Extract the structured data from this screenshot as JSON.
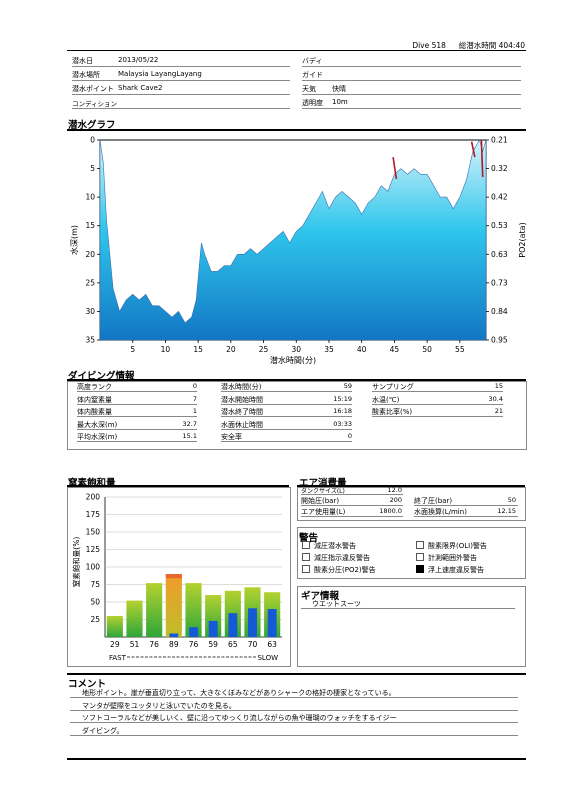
{
  "header": {
    "dive_label": "Dive 518",
    "total_label": "総潜水時間 404:40"
  },
  "info": {
    "date_label": "潜水日",
    "date": "2013/05/22",
    "place_label": "潜水場所",
    "place": "Malaysia LayangLayang",
    "point_label": "潜水ポイント",
    "point": "Shark Cave2",
    "condition_label": "コンディション",
    "condition": "",
    "buddy_label": "バディ",
    "buddy": "",
    "guide_label": "ガイド",
    "guide": "",
    "weather_label": "天気",
    "weather": "快晴",
    "visibility_label": "透明度",
    "visibility": "10m"
  },
  "graph": {
    "title": "潜水グラフ",
    "xlabel": "潜水時間(分)",
    "ylabel": "水深(m)",
    "y2label": "PO2(ata)"
  },
  "chart_data": [
    {
      "type": "area",
      "title": "潜水グラフ",
      "xlabel": "潜水時間(分)",
      "ylabel": "水深(m)",
      "y2label": "PO2(ata)",
      "xlim": [
        0,
        59
      ],
      "ylim": [
        35,
        0
      ],
      "x_ticks": [
        5,
        10,
        15,
        20,
        25,
        30,
        35,
        40,
        45,
        50,
        55
      ],
      "y_ticks": [
        0,
        5,
        10,
        15,
        20,
        25,
        30,
        35
      ],
      "y2_ticks": [
        0.21,
        0.32,
        0.42,
        0.53,
        0.63,
        0.73,
        0.84,
        0.95
      ],
      "x": [
        0,
        0.5,
        1,
        2,
        3,
        4,
        5,
        6,
        7,
        8,
        9,
        10,
        11,
        12,
        13,
        14,
        14.7,
        15.5,
        16,
        17,
        18,
        19,
        20,
        21,
        22,
        23,
        24,
        25,
        26,
        27,
        28,
        29,
        30,
        31,
        32,
        33,
        34,
        35,
        36,
        37,
        38,
        39,
        40,
        41,
        42,
        43,
        44,
        45,
        46,
        47,
        48,
        49,
        50,
        51,
        52,
        53,
        54,
        55,
        56,
        57,
        57.5,
        58,
        58.5,
        59
      ],
      "depth": [
        0,
        4,
        14,
        26,
        30,
        28,
        27,
        28,
        27,
        29,
        29,
        30,
        31,
        30,
        32,
        31,
        28,
        18,
        20,
        23,
        23,
        22,
        22,
        20,
        20,
        19,
        20,
        19,
        18,
        17,
        16,
        18,
        16,
        15,
        13,
        11,
        9,
        12,
        10,
        9,
        10,
        11,
        13,
        11,
        10,
        8,
        9,
        6,
        5,
        6,
        5,
        6,
        6,
        8,
        10,
        10,
        12,
        10,
        7,
        2,
        1,
        0,
        2,
        0
      ],
      "series": [
        {
          "name": "PO2(ata)",
          "segments": [
            [
              44.8,
              3.0,
              45.3,
              6.8
            ],
            [
              56.8,
              0.3,
              57.3,
              3.0
            ],
            [
              58.3,
              0.0,
              58.5,
              6.5
            ]
          ]
        }
      ]
    },
    {
      "type": "bar",
      "title": "窒素飽和量",
      "ylabel": "窒素飽和量(%)",
      "ylim": [
        0,
        200
      ],
      "y_ticks": [
        25,
        50,
        75,
        100,
        125,
        150,
        175,
        200
      ],
      "categories": [
        "29",
        "51",
        "76",
        "89",
        "76",
        "59",
        "65",
        "70",
        "63"
      ],
      "series": [
        {
          "values": [
            30,
            52,
            77,
            90,
            77,
            60,
            66,
            71,
            64
          ]
        },
        {
          "values": [
            0,
            0,
            0,
            5,
            14,
            23,
            34,
            41,
            40
          ]
        }
      ],
      "x_range_labels": [
        "FAST",
        "SLOW"
      ]
    }
  ],
  "diving_info": {
    "title": "ダイビング情報",
    "col1": [
      {
        "label": "高度ランク",
        "value": "0"
      },
      {
        "label": "体内窒素量",
        "value": "7"
      },
      {
        "label": "体内酸素量",
        "value": "1"
      },
      {
        "label": "最大水深(m)",
        "value": "32.7"
      },
      {
        "label": "平均水深(m)",
        "value": "15.1"
      }
    ],
    "col2": [
      {
        "label": "潜水時間(分)",
        "value": "59"
      },
      {
        "label": "潜水開始時間",
        "value": "15:19"
      },
      {
        "label": "潜水終了時間",
        "value": "16:18"
      },
      {
        "label": "水面休止時間",
        "value": "03:33"
      },
      {
        "label": "安全率",
        "value": "0"
      }
    ],
    "col3": [
      {
        "label": "サンプリング",
        "value": "15"
      },
      {
        "label": "水温(℃)",
        "value": "30.4"
      },
      {
        "label": "酸素比率(%)",
        "value": "21"
      }
    ]
  },
  "nitrogen": {
    "title": "窒素飽和量",
    "ylabel": "窒素飽和量(%)",
    "fast": "FAST",
    "slow": "SLOW"
  },
  "air": {
    "title": "エア消費量",
    "tank_label": "タンクサイズ(L)",
    "tank": "12.0",
    "start_label": "開始圧(bar)",
    "start": "200",
    "end_label": "終了圧(bar)",
    "end": "50",
    "use_label": "エア使用量(L)",
    "use": "1800.0",
    "surface_label": "水面換算(L/min)",
    "surface": "12.15"
  },
  "warnings": {
    "title": "警告",
    "items": [
      {
        "label": "減圧潜水警告",
        "checked": false
      },
      {
        "label": "酸素限界(OLI)警告",
        "checked": false
      },
      {
        "label": "減圧指示違反警告",
        "checked": false
      },
      {
        "label": "計測範囲外警告",
        "checked": false
      },
      {
        "label": "酸素分圧(PO2)警告",
        "checked": false
      },
      {
        "label": "浮上速度違反警告",
        "checked": true
      }
    ]
  },
  "gear": {
    "title": "ギア情報",
    "item": "ウエットスーツ"
  },
  "comment": {
    "title": "コメント",
    "lines": [
      "地形ポイント。崖が垂直切り立って、大きなくぼみなどがありシャークの格好の棲家となっている。",
      "マンタが壁際をユッタリと泳いでいたのを見る。",
      "ソフトコーラルなどが美しいく、壁に沿ってゆっくり流しながらの魚や珊瑚のウォッチをするイジー",
      "ダイビング。"
    ]
  }
}
